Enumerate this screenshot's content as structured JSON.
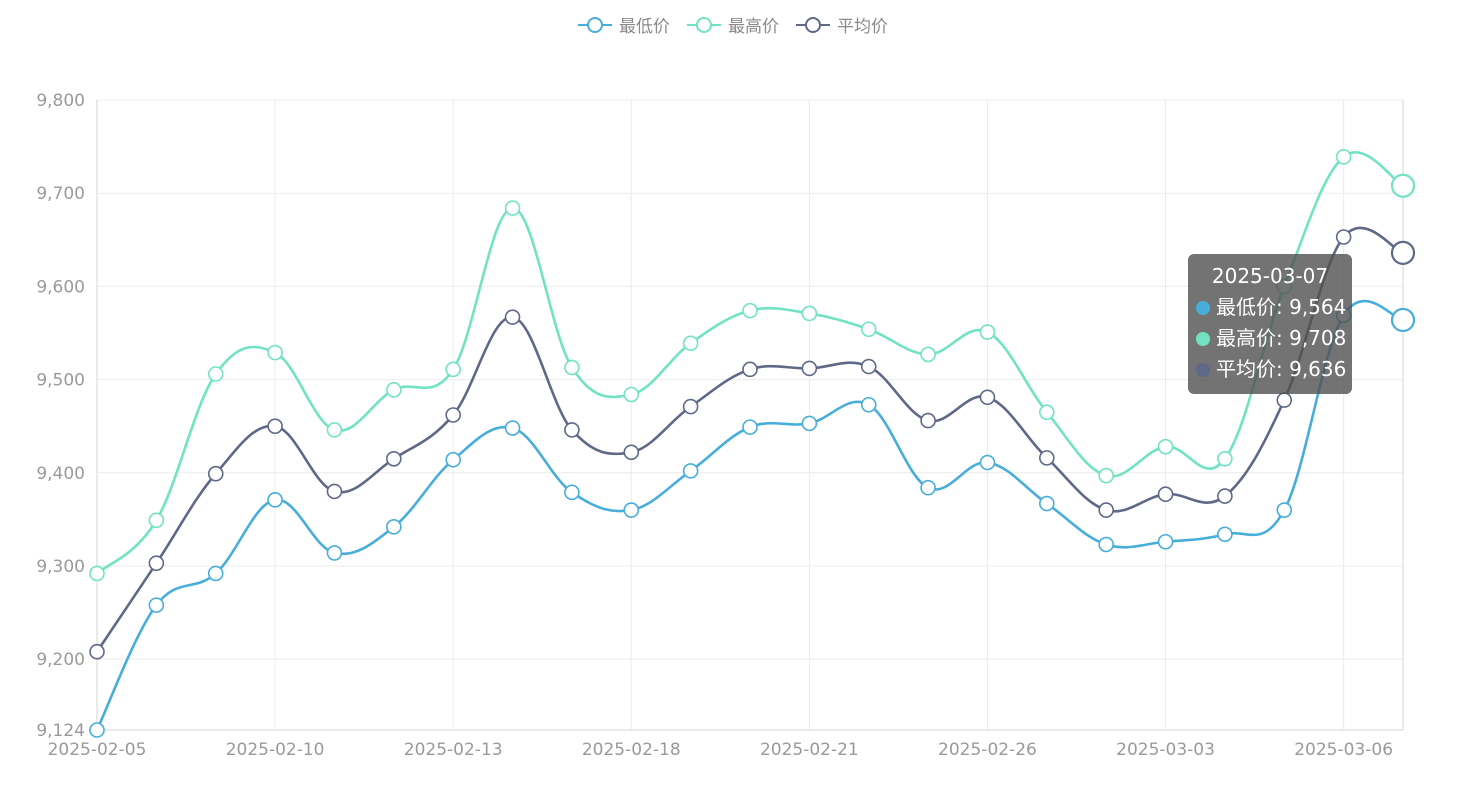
{
  "chart_data": {
    "type": "line",
    "smooth": true,
    "x": [
      "2025-02-05",
      "2025-02-06",
      "2025-02-07",
      "2025-02-10",
      "2025-02-11",
      "2025-02-12",
      "2025-02-13",
      "2025-02-14",
      "2025-02-17",
      "2025-02-18",
      "2025-02-19",
      "2025-02-20",
      "2025-02-21",
      "2025-02-24",
      "2025-02-25",
      "2025-02-26",
      "2025-02-27",
      "2025-02-28",
      "2025-03-03",
      "2025-03-04",
      "2025-03-05",
      "2025-03-06",
      "2025-03-07"
    ],
    "x_tick_labels": [
      "2025-02-05",
      "2025-02-10",
      "2025-02-13",
      "2025-02-18",
      "2025-02-21",
      "2025-02-26",
      "2025-03-03",
      "2025-03-06"
    ],
    "ylim": [
      9124,
      9800
    ],
    "y_tick_labels": [
      "9,124",
      "9,200",
      "9,300",
      "9,400",
      "9,500",
      "9,600",
      "9,700",
      "9,800"
    ],
    "y_ticks": [
      9124,
      9200,
      9300,
      9400,
      9500,
      9600,
      9700,
      9800
    ],
    "grid": true,
    "legend_position": "top-center",
    "series": [
      {
        "name": "最低价",
        "color": "#47aed9",
        "values": [
          9124,
          9258,
          9292,
          9371,
          9314,
          9342,
          9414,
          9448,
          9379,
          9360,
          9402,
          9449,
          9453,
          9473,
          9384,
          9411,
          9367,
          9323,
          9326,
          9334,
          9360,
          9569,
          9564
        ]
      },
      {
        "name": "最高价",
        "color": "#71e3c3",
        "values": [
          9292,
          9349,
          9506,
          9529,
          9446,
          9489,
          9511,
          9684,
          9513,
          9484,
          9539,
          9574,
          9571,
          9554,
          9527,
          9551,
          9465,
          9397,
          9428,
          9415,
          9600,
          9739,
          9708
        ]
      },
      {
        "name": "平均价",
        "color": "#5f6987",
        "values": [
          9208,
          9303,
          9399,
          9450,
          9380,
          9415,
          9462,
          9567,
          9446,
          9422,
          9471,
          9511,
          9512,
          9514,
          9456,
          9481,
          9416,
          9360,
          9377,
          9375,
          9478,
          9653,
          9636
        ]
      }
    ],
    "tooltip": {
      "title": "2025-03-07",
      "rows": [
        {
          "label": "最低价: 9,564",
          "color": "#47aed9"
        },
        {
          "label": "最高价: 9,708",
          "color": "#71e3c3"
        },
        {
          "label": "平均价: 9,636",
          "color": "#5f6987"
        }
      ]
    }
  }
}
